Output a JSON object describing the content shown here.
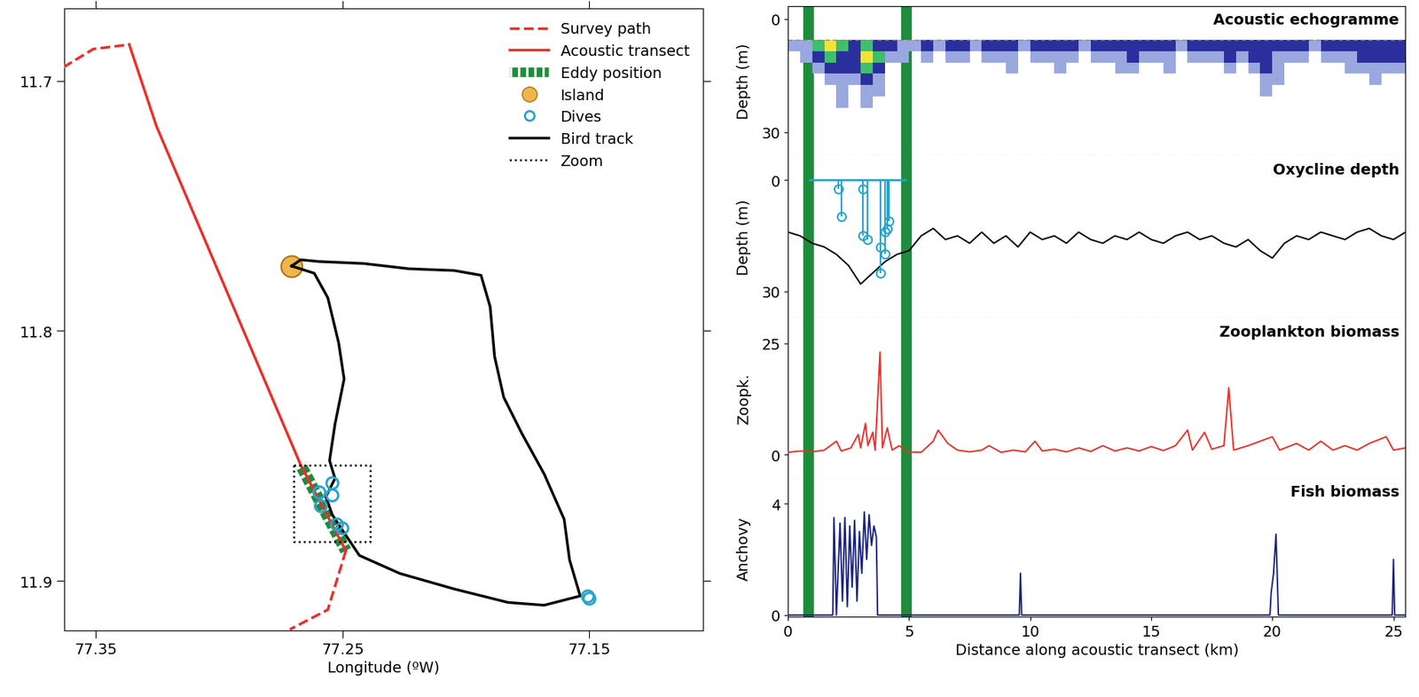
{
  "chart_data": [
    {
      "type": "map",
      "xlabel": "Longitude (ºW)",
      "xlim": [
        77.363,
        77.104
      ],
      "ylim": [
        11.92,
        11.671
      ],
      "xticks": [
        77.35,
        77.25,
        77.15
      ],
      "yticks": [
        11.7,
        11.8,
        11.9
      ],
      "legend": "upper right",
      "series": [
        {
          "name": "Survey path",
          "color": "#e8302a",
          "line_style": "dashed",
          "x": [
            77.3632,
            77.3511,
            77.3365,
            null,
            77.2487,
            77.256,
            77.2714
          ],
          "y": [
            11.6946,
            11.6873,
            11.6855,
            null,
            11.888,
            11.9116,
            11.9195
          ]
        },
        {
          "name": "Acoustic transect",
          "color": "#e8302a",
          "line_style": "solid",
          "x": [
            77.3365,
            77.3255,
            77.267,
            77.2487
          ],
          "y": [
            11.6855,
            11.7181,
            11.8537,
            11.888
          ]
        },
        {
          "name": "Eddy position",
          "color": "#1e8c3c",
          "line_style": "hatched",
          "x": [
            77.267,
            77.2487
          ],
          "y": [
            11.8537,
            11.888
          ]
        },
        {
          "name": "Island",
          "color": "#f0b64a",
          "marker": "circle",
          "x": [
            77.2707
          ],
          "y": [
            11.7741
          ]
        },
        {
          "name": "Dives",
          "color": "#29a3c9",
          "marker": "open_circle",
          "x": [
            77.2542,
            77.2597,
            77.2542,
            77.259,
            77.2524,
            77.2502,
            77.1507,
            77.15
          ],
          "y": [
            11.8609,
            11.8646,
            11.8656,
            11.87,
            11.8772,
            11.879,
            11.9061,
            11.9069
          ]
        },
        {
          "name": "Bird track",
          "color": "#000000",
          "line_style": "solid",
          "x": [
            77.2707,
            77.2615,
            77.256,
            77.2516,
            77.2494,
            77.2531,
            77.2553,
            77.2531,
            77.2568,
            77.2542,
            77.2494,
            77.2432,
            77.2268,
            77.2048,
            77.1829,
            77.1683,
            77.1537,
            77.158,
            77.1602,
            77.1683,
            77.1774,
            77.1847,
            77.1884,
            77.1902,
            77.1939,
            77.2048,
            77.2231,
            77.2414,
            77.2597,
            77.267,
            77.2707
          ],
          "y": [
            11.7741,
            11.777,
            11.7868,
            11.8049,
            11.8193,
            11.8374,
            11.8519,
            11.8591,
            11.8664,
            11.8736,
            11.8808,
            11.8899,
            11.8971,
            11.9033,
            11.9087,
            11.9098,
            11.9061,
            11.8917,
            11.8754,
            11.8573,
            11.841,
            11.8266,
            11.8103,
            11.7904,
            11.7778,
            11.7759,
            11.7752,
            11.7731,
            11.7723,
            11.7716,
            11.7741
          ]
        },
        {
          "name": "Zoom",
          "color": "#000000",
          "line_style": "dotted",
          "x": [
            77.2699,
            77.2389,
            77.2389,
            77.2699,
            77.2699
          ],
          "y": [
            11.8537,
            11.8537,
            11.8844,
            11.8844,
            11.8537
          ]
        }
      ]
    },
    {
      "type": "panels",
      "xlabel": "Distance along acoustic transect (km)",
      "xlim": [
        0,
        25.5
      ],
      "xticks": [
        0,
        5,
        10,
        15,
        20,
        25
      ],
      "eddy_x": [
        0.86,
        4.9
      ],
      "panels": [
        {
          "type": "heatmap",
          "title": "Acoustic echogramme",
          "ylabel": "Depth (m)",
          "ylim": [
            36.2,
            -3.4
          ],
          "yticks": [
            0,
            30
          ],
          "tick_labels": "y",
          "x_edges": [
            0,
            0.5,
            1.0,
            1.5,
            2.0,
            2.5,
            3.0,
            3.5,
            4.0,
            4.5,
            5.0,
            5.5,
            6.0,
            6.5,
            7.0,
            7.5,
            8.0,
            8.5,
            9.0,
            9.5,
            10.0,
            10.5,
            11.0,
            11.5,
            12.0,
            12.5,
            13.0,
            13.5,
            14.0,
            14.5,
            15.0,
            15.5,
            16.0,
            16.5,
            17.0,
            17.5,
            18.0,
            18.5,
            19.0,
            19.5,
            20.0,
            20.5,
            21.0,
            21.5,
            22.0,
            22.5,
            23.0,
            23.5,
            24.0,
            24.5,
            25.0,
            25.5
          ],
          "depth_edges": [
            5.5,
            8.5,
            11.5,
            14.5,
            17.5,
            20.5,
            23.5
          ],
          "cells": [
            [
              1,
              1,
              3,
              4,
              3,
              2,
              3,
              2,
              2,
              1,
              1,
              2,
              1,
              2,
              2,
              1,
              2,
              2,
              2,
              1,
              2,
              2,
              2,
              2,
              1,
              2,
              2,
              2,
              2,
              2,
              2,
              2,
              1,
              2,
              2,
              2,
              2,
              2,
              2,
              2,
              2,
              2,
              2,
              1,
              2,
              2,
              2,
              2,
              2,
              2,
              2
            ],
            [
              0,
              1,
              2,
              3,
              2,
              2,
              4,
              3,
              1,
              1,
              0,
              1,
              0,
              1,
              1,
              0,
              1,
              1,
              1,
              0,
              1,
              1,
              1,
              1,
              0,
              1,
              1,
              1,
              2,
              1,
              1,
              1,
              0,
              1,
              1,
              1,
              2,
              1,
              2,
              2,
              1,
              1,
              1,
              0,
              1,
              1,
              1,
              2,
              2,
              2,
              2
            ],
            [
              0,
              0,
              1,
              2,
              2,
              2,
              3,
              2,
              0,
              0,
              0,
              0,
              0,
              0,
              0,
              0,
              0,
              0,
              1,
              0,
              0,
              0,
              1,
              0,
              0,
              0,
              0,
              1,
              1,
              0,
              0,
              1,
              0,
              0,
              0,
              0,
              1,
              0,
              1,
              2,
              1,
              0,
              0,
              0,
              0,
              0,
              1,
              1,
              1,
              1,
              1
            ],
            [
              0,
              0,
              0,
              1,
              1,
              1,
              2,
              1,
              0,
              0,
              0,
              0,
              0,
              0,
              0,
              0,
              0,
              0,
              0,
              0,
              0,
              0,
              0,
              0,
              0,
              0,
              0,
              0,
              0,
              0,
              0,
              0,
              0,
              0,
              0,
              0,
              0,
              0,
              0,
              1,
              1,
              0,
              0,
              0,
              0,
              0,
              0,
              0,
              1,
              0,
              0
            ],
            [
              0,
              0,
              0,
              0,
              1,
              0,
              1,
              1,
              0,
              0,
              0,
              0,
              0,
              0,
              0,
              0,
              0,
              0,
              0,
              0,
              0,
              0,
              0,
              0,
              0,
              0,
              0,
              0,
              0,
              0,
              0,
              0,
              0,
              0,
              0,
              0,
              0,
              0,
              0,
              1,
              0,
              0,
              0,
              0,
              0,
              0,
              0,
              0,
              0,
              0,
              0
            ],
            [
              0,
              0,
              0,
              0,
              1,
              0,
              1,
              0,
              0,
              0,
              0,
              0,
              0,
              0,
              0,
              0,
              0,
              0,
              0,
              0,
              0,
              0,
              0,
              0,
              0,
              0,
              0,
              0,
              0,
              0,
              0,
              0,
              0,
              0,
              0,
              0,
              0,
              0,
              0,
              0,
              0,
              0,
              0,
              0,
              0,
              0,
              0,
              0,
              0,
              0,
              0
            ]
          ]
        },
        {
          "type": "line",
          "title": "Oxycline depth",
          "ylabel": "Depth (m)",
          "ylim": [
            37.1,
            -6.6
          ],
          "yticks": [
            0,
            30
          ],
          "tick_labels": "y",
          "color": "#000000",
          "x": [
            0,
            0.5,
            1.0,
            1.5,
            2.0,
            2.5,
            3.0,
            3.5,
            4.0,
            4.5,
            5.0,
            5.5,
            6.0,
            6.5,
            7.0,
            7.5,
            8.0,
            8.5,
            9.0,
            9.5,
            10.0,
            10.5,
            11.0,
            11.5,
            12.0,
            12.5,
            13.0,
            13.5,
            14.0,
            14.5,
            15.0,
            15.5,
            16.0,
            16.5,
            17.0,
            17.5,
            18.0,
            18.5,
            19.0,
            19.5,
            20.0,
            20.5,
            21.0,
            21.5,
            22.0,
            22.5,
            23.0,
            23.5,
            24.0,
            24.5,
            25.0,
            25.5
          ],
          "values": [
            14,
            15,
            17,
            18,
            20,
            23,
            28,
            25,
            22,
            20,
            19,
            15,
            13,
            16,
            15,
            17,
            14,
            17,
            15,
            18,
            14,
            16,
            15,
            17,
            14,
            16,
            17,
            15,
            16,
            14,
            16,
            17,
            15,
            14,
            16,
            15,
            17,
            18,
            16,
            19,
            21,
            17,
            15,
            16,
            14,
            15,
            16,
            14,
            13,
            15,
            16,
            14
          ],
          "dives": {
            "color": "#29a3c9",
            "surface_depth": 0,
            "x": [
              2.09,
              2.2,
              3.1,
              3.1,
              3.28,
              3.82,
              3.82,
              4.0,
              4.0,
              4.1,
              4.18
            ],
            "depth": [
              2.4,
              9.8,
              2.4,
              15,
              16,
              18,
              25,
              14,
              20,
              13,
              11
            ]
          }
        },
        {
          "type": "line",
          "title": "Zooplankton biomass",
          "ylabel": "Zoopk.",
          "ylim": [
            -5.5,
            30.7
          ],
          "yticks": [
            0,
            25
          ],
          "tick_labels": "y",
          "color": "#e8302a",
          "x": [
            0,
            0.5,
            1.0,
            1.5,
            2.0,
            2.2,
            2.6,
            2.9,
            3.0,
            3.2,
            3.3,
            3.5,
            3.6,
            3.8,
            3.9,
            4.1,
            4.3,
            4.6,
            4.9,
            5.5,
            6.0,
            6.2,
            6.6,
            7.0,
            7.5,
            8.0,
            8.3,
            8.8,
            9.3,
            9.8,
            10.2,
            10.5,
            11.0,
            11.5,
            12.0,
            12.5,
            13.0,
            13.5,
            14.0,
            14.5,
            15.0,
            15.5,
            16.0,
            16.5,
            16.7,
            17.2,
            17.5,
            18.0,
            18.2,
            18.4,
            19.0,
            19.5,
            20.0,
            20.3,
            21.0,
            21.5,
            22.0,
            22.5,
            23.0,
            23.5,
            24.0,
            24.7,
            25.0,
            25.5
          ],
          "values": [
            0.5,
            0.8,
            0.6,
            1.0,
            3.0,
            0.8,
            1.5,
            4.5,
            1.5,
            7.0,
            2.0,
            5.0,
            1.0,
            23.0,
            1.5,
            6.0,
            1.0,
            2.0,
            0.6,
            0.5,
            3.0,
            5.5,
            2.5,
            1.0,
            0.6,
            1.0,
            2.0,
            0.5,
            1.0,
            0.6,
            3.0,
            0.8,
            1.2,
            0.6,
            1.5,
            0.7,
            2.0,
            0.8,
            1.5,
            0.8,
            1.8,
            0.9,
            2.0,
            5.5,
            1.0,
            5.0,
            1.2,
            2.0,
            15.0,
            1.0,
            2.0,
            3.0,
            4.0,
            1.0,
            2.5,
            1.0,
            3.0,
            1.0,
            2.0,
            1.0,
            2.5,
            4.0,
            1.0,
            1.5
          ]
        },
        {
          "type": "line",
          "title": "Fish biomass",
          "ylabel": "Anchovy",
          "ylim": [
            -0.06,
            4.88
          ],
          "yticks": [
            0,
            4
          ],
          "color": "#1a237e",
          "x": [
            0,
            1.85,
            1.9,
            2.0,
            2.15,
            2.25,
            2.35,
            2.45,
            2.55,
            2.65,
            2.75,
            2.85,
            2.95,
            3.05,
            3.15,
            3.25,
            3.35,
            3.45,
            3.55,
            3.65,
            3.7,
            9.55,
            9.6,
            9.65,
            19.9,
            19.95,
            20.05,
            20.15,
            20.25,
            24.95,
            25.0,
            25.05,
            25.5
          ],
          "values": [
            0,
            0,
            3.5,
            0,
            3.3,
            0.5,
            3.5,
            0.3,
            3.2,
            1.0,
            3.4,
            0.5,
            3.0,
            1.5,
            3.7,
            2.0,
            3.6,
            2.5,
            3.2,
            2.8,
            0,
            0,
            1.5,
            0,
            0,
            0.8,
            1.5,
            2.9,
            0,
            0,
            2.0,
            0,
            0
          ]
        }
      ]
    }
  ]
}
